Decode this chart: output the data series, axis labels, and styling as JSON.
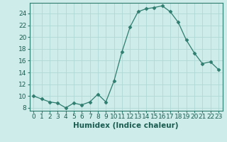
{
  "x": [
    0,
    1,
    2,
    3,
    4,
    5,
    6,
    7,
    8,
    9,
    10,
    11,
    12,
    13,
    14,
    15,
    16,
    17,
    18,
    19,
    20,
    21,
    22,
    23
  ],
  "y": [
    10.0,
    9.5,
    9.0,
    8.8,
    8.0,
    8.8,
    8.5,
    9.0,
    10.3,
    9.0,
    12.5,
    17.5,
    21.7,
    24.3,
    24.8,
    25.0,
    25.3,
    24.3,
    22.5,
    19.5,
    17.3,
    15.5,
    15.8,
    14.5
  ],
  "line_color": "#2e7d6e",
  "marker": "D",
  "marker_size": 2.5,
  "bg_color": "#ceecea",
  "grid_color": "#b0d8d5",
  "xlabel": "Humidex (Indice chaleur)",
  "xlim": [
    -0.5,
    23.5
  ],
  "ylim": [
    7.5,
    25.8
  ],
  "yticks": [
    8,
    10,
    12,
    14,
    16,
    18,
    20,
    22,
    24
  ],
  "xticks": [
    0,
    1,
    2,
    3,
    4,
    5,
    6,
    7,
    8,
    9,
    10,
    11,
    12,
    13,
    14,
    15,
    16,
    17,
    18,
    19,
    20,
    21,
    22,
    23
  ],
  "xlabel_fontsize": 7.5,
  "tick_fontsize": 6.5,
  "xlabel_color": "#1a5c50"
}
